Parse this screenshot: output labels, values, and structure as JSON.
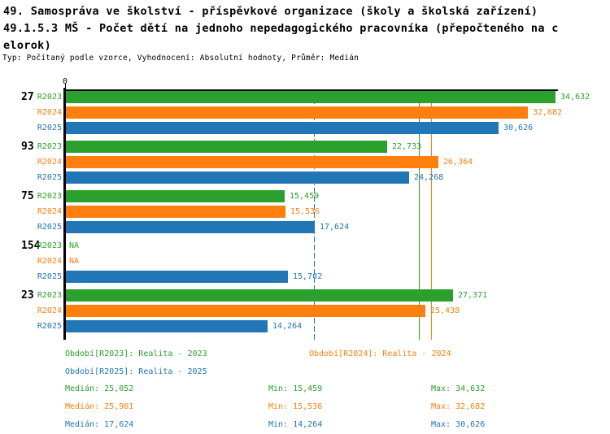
{
  "header": {
    "title_line1": "49. Samospráva ve školství - příspěvkové organizace (školy a školská zařízení)",
    "title_line2": "49.1.5.3 MŠ - Počet dětí na jednoho nepedagogického pracovníka (přepočteného na c",
    "title_line3": "elorok)",
    "meta": "Typ: Počítaný podle vzorce, Vyhodnocení: Absolutní hodnoty, Průměr: Medián"
  },
  "chart_data": {
    "type": "bar",
    "orientation": "horizontal",
    "title": "49.1.5.3 MŠ - Počet dětí na jednoho nepedagogického pracovníka (přepočteného na celorok)",
    "origin_label": "0",
    "xlim": [
      0,
      34.87
    ],
    "grid": false,
    "series_order": [
      "R2023",
      "R2024",
      "R2025"
    ],
    "series_colors": {
      "R2023": "#2ca02c",
      "R2024": "#ff7f0e",
      "R2025": "#2176b5"
    },
    "groups": [
      {
        "label": "27",
        "bars": [
          {
            "series": "R2023",
            "value": 34.632,
            "label": "34,632"
          },
          {
            "series": "R2024",
            "value": 32.682,
            "label": "32,682"
          },
          {
            "series": "R2025",
            "value": 30.626,
            "label": "30,626"
          }
        ]
      },
      {
        "label": "93",
        "bars": [
          {
            "series": "R2023",
            "value": 22.733,
            "label": "22,733"
          },
          {
            "series": "R2024",
            "value": 26.364,
            "label": "26,364"
          },
          {
            "series": "R2025",
            "value": 24.268,
            "label": "24,268"
          }
        ]
      },
      {
        "label": "75",
        "bars": [
          {
            "series": "R2023",
            "value": 15.459,
            "label": "15,459"
          },
          {
            "series": "R2024",
            "value": 15.536,
            "label": "15,536"
          },
          {
            "series": "R2025",
            "value": 17.624,
            "label": "17,624"
          }
        ]
      },
      {
        "label": "154",
        "bars": [
          {
            "series": "R2023",
            "value": null,
            "label": "NA"
          },
          {
            "series": "R2024",
            "value": null,
            "label": "NA"
          },
          {
            "series": "R2025",
            "value": 15.702,
            "label": "15,702"
          }
        ]
      },
      {
        "label": "23",
        "bars": [
          {
            "series": "R2023",
            "value": 27.371,
            "label": "27,371"
          },
          {
            "series": "R2024",
            "value": 25.438,
            "label": "25,438"
          },
          {
            "series": "R2025",
            "value": 14.264,
            "label": "14,264"
          }
        ]
      }
    ],
    "median_lines": [
      {
        "series": "R2023",
        "value": 25.052,
        "label": "25,052",
        "style": "solid"
      },
      {
        "series": "R2024",
        "value": 25.901,
        "label": "25,901",
        "style": "solid"
      },
      {
        "series": "R2025",
        "value": 17.624,
        "label": "17,624",
        "style": "dashed"
      }
    ]
  },
  "legend": {
    "items": [
      {
        "series": "R2023",
        "text": "Období[R2023]: Realita - 2023"
      },
      {
        "series": "R2024",
        "text": "Období[R2024]: Realita - 2024"
      },
      {
        "series": "R2025",
        "text": "Období[R2025]: Realita - 2025"
      }
    ]
  },
  "stats": {
    "rows": [
      {
        "series": "R2023",
        "median": "Medián: 25,052",
        "min": "Min: 15,459",
        "max": "Max: 34,632"
      },
      {
        "series": "R2024",
        "median": "Medián: 25,901",
        "min": "Min: 15,536",
        "max": "Max: 32,682"
      },
      {
        "series": "R2025",
        "median": "Medián: 17,624",
        "min": "Min: 14,264",
        "max": "Max: 30,626"
      }
    ]
  }
}
